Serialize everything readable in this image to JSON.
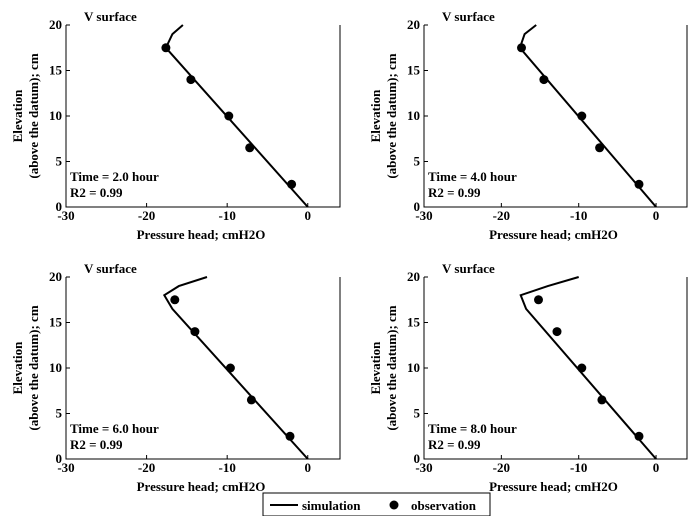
{
  "figure": {
    "legend": {
      "items": [
        {
          "label": "simulation",
          "marker": "line"
        },
        {
          "label": "observation",
          "marker": "dot"
        }
      ]
    }
  },
  "chart_data": [
    {
      "type": "line",
      "corner_label": "V surface",
      "annotation_time": "Time = 2.0 hour",
      "annotation_r2": "R2 = 0.99",
      "xlabel": "Pressure head; cmH2O",
      "ylabel": [
        "Elevation",
        "(above the datum); cm"
      ],
      "xlim": [
        -30,
        4
      ],
      "ylim": [
        0,
        20
      ],
      "xticks": [
        -30,
        -20,
        -10,
        0
      ],
      "yticks": [
        0,
        5,
        10,
        15,
        20
      ],
      "series": [
        {
          "name": "simulation",
          "style": "line",
          "points": [
            [
              -15.5,
              20
            ],
            [
              -16.8,
              19
            ],
            [
              -17.6,
              17.5
            ],
            [
              0,
              0
            ]
          ]
        },
        {
          "name": "observation",
          "style": "dot",
          "points": [
            [
              -17.6,
              17.5
            ],
            [
              -14.5,
              14
            ],
            [
              -9.8,
              10
            ],
            [
              -7.2,
              6.5
            ],
            [
              -2.0,
              2.5
            ]
          ]
        }
      ]
    },
    {
      "type": "line",
      "corner_label": "V surface",
      "annotation_time": "Time = 4.0 hour",
      "annotation_r2": "R2 = 0.99",
      "xlabel": "Pressure head; cmH2O",
      "ylabel": [
        "Elevation",
        "(above the datum); cm"
      ],
      "xlim": [
        -30,
        4
      ],
      "ylim": [
        0,
        20
      ],
      "xticks": [
        -30,
        -20,
        -10,
        0
      ],
      "yticks": [
        0,
        5,
        10,
        15,
        20
      ],
      "series": [
        {
          "name": "simulation",
          "style": "line",
          "points": [
            [
              -15.5,
              20
            ],
            [
              -17.0,
              19
            ],
            [
              -17.6,
              17.5
            ],
            [
              0,
              0
            ]
          ]
        },
        {
          "name": "observation",
          "style": "dot",
          "points": [
            [
              -17.4,
              17.5
            ],
            [
              -14.5,
              14
            ],
            [
              -9.6,
              10
            ],
            [
              -7.3,
              6.5
            ],
            [
              -2.2,
              2.5
            ]
          ]
        }
      ]
    },
    {
      "type": "line",
      "corner_label": "V surface",
      "annotation_time": "Time = 6.0 hour",
      "annotation_r2": "R2 = 0.99",
      "xlabel": "Pressure head; cmH2O",
      "ylabel": [
        "Elevation",
        "(above the datum); cm"
      ],
      "xlim": [
        -30,
        4
      ],
      "ylim": [
        0,
        20
      ],
      "xticks": [
        -30,
        -20,
        -10,
        0
      ],
      "yticks": [
        0,
        5,
        10,
        15,
        20
      ],
      "series": [
        {
          "name": "simulation",
          "style": "line",
          "points": [
            [
              -12.5,
              20
            ],
            [
              -16.0,
              19
            ],
            [
              -17.8,
              18
            ],
            [
              -16.8,
              16.5
            ],
            [
              0,
              0
            ]
          ]
        },
        {
          "name": "observation",
          "style": "dot",
          "points": [
            [
              -16.5,
              17.5
            ],
            [
              -14.0,
              14
            ],
            [
              -9.6,
              10
            ],
            [
              -7.0,
              6.5
            ],
            [
              -2.2,
              2.5
            ]
          ]
        }
      ]
    },
    {
      "type": "line",
      "corner_label": "V surface",
      "annotation_time": "Time = 8.0 hour",
      "annotation_r2": "R2 = 0.99",
      "xlabel": "Pressure head; cmH2O",
      "ylabel": [
        "Elevation",
        "(above the datum); cm"
      ],
      "xlim": [
        -30,
        4
      ],
      "ylim": [
        0,
        20
      ],
      "xticks": [
        -30,
        -20,
        -10,
        0
      ],
      "yticks": [
        0,
        5,
        10,
        15,
        20
      ],
      "series": [
        {
          "name": "simulation",
          "style": "line",
          "points": [
            [
              -10.0,
              20
            ],
            [
              -14.0,
              19
            ],
            [
              -17.5,
              18
            ],
            [
              -16.8,
              16.5
            ],
            [
              0,
              0
            ]
          ]
        },
        {
          "name": "observation",
          "style": "dot",
          "points": [
            [
              -15.2,
              17.5
            ],
            [
              -12.8,
              14
            ],
            [
              -9.6,
              10
            ],
            [
              -7.0,
              6.5
            ],
            [
              -2.2,
              2.5
            ]
          ]
        }
      ]
    }
  ]
}
